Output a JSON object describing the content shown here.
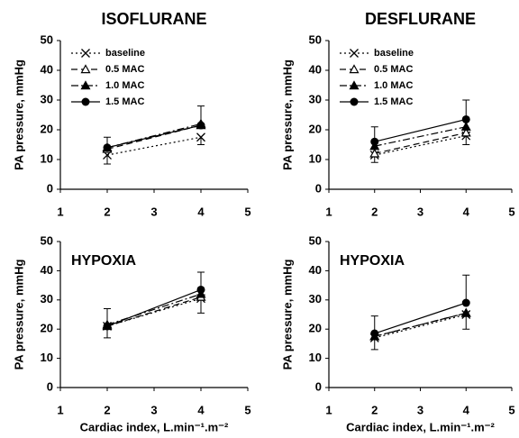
{
  "chart_data": [
    {
      "type": "line",
      "title": "ISOFLURANE",
      "ylabel": "PA pressure, mmHg",
      "x": [
        2,
        4
      ],
      "xlim": [
        1,
        5
      ],
      "xticks": [
        1,
        2,
        3,
        4,
        5
      ],
      "ylim": [
        0,
        50
      ],
      "yticks": [
        0,
        10,
        20,
        30,
        40,
        50
      ],
      "legend": "upper left",
      "series": [
        {
          "name": "baseline",
          "color": "#000000",
          "marker": "x",
          "linestyle": "dotted",
          "values": [
            11.5,
            17.5
          ],
          "errors": [
            3,
            2.5
          ],
          "error_direction": "down"
        },
        {
          "name": "0.5 MAC",
          "color": "#000000",
          "marker": "triangle-open",
          "linestyle": "dashed",
          "values": [
            13.5,
            21.5
          ]
        },
        {
          "name": "1.0 MAC",
          "color": "#000000",
          "marker": "triangle",
          "linestyle": "dashdot",
          "values": [
            14,
            22
          ]
        },
        {
          "name": "1.5 MAC",
          "color": "#000000",
          "marker": "circle",
          "linestyle": "solid",
          "values": [
            14,
            21.5
          ],
          "errors": [
            3.5,
            6.5
          ],
          "error_direction": "up"
        }
      ]
    },
    {
      "type": "line",
      "title": "DESFLURANE",
      "ylabel": "PA pressure, mmHg",
      "x": [
        2,
        4
      ],
      "xlim": [
        1,
        5
      ],
      "xticks": [
        1,
        2,
        3,
        4,
        5
      ],
      "ylim": [
        0,
        50
      ],
      "yticks": [
        0,
        10,
        20,
        30,
        40,
        50
      ],
      "legend": "upper left",
      "series": [
        {
          "name": "baseline",
          "color": "#000000",
          "marker": "x",
          "linestyle": "dotted",
          "values": [
            11.5,
            18
          ],
          "errors": [
            2.5,
            3
          ],
          "error_direction": "down"
        },
        {
          "name": "0.5 MAC",
          "color": "#000000",
          "marker": "triangle-open",
          "linestyle": "dashed",
          "values": [
            12,
            19
          ]
        },
        {
          "name": "1.0 MAC",
          "color": "#000000",
          "marker": "triangle",
          "linestyle": "dashdot",
          "values": [
            14.5,
            21
          ]
        },
        {
          "name": "1.5 MAC",
          "color": "#000000",
          "marker": "circle",
          "linestyle": "solid",
          "values": [
            16,
            23.5
          ],
          "errors": [
            5,
            6.5
          ],
          "error_direction": "up"
        }
      ]
    },
    {
      "type": "line",
      "annotation": "HYPOXIA",
      "ylabel": "PA pressure, mmHg",
      "xlabel": "Cardiac index, L.min⁻¹.m⁻²",
      "x": [
        2,
        4
      ],
      "xlim": [
        1,
        5
      ],
      "xticks": [
        1,
        2,
        3,
        4,
        5
      ],
      "ylim": [
        0,
        50
      ],
      "yticks": [
        0,
        10,
        20,
        30,
        40,
        50
      ],
      "series": [
        {
          "color": "#000000",
          "marker": "x",
          "linestyle": "dotted",
          "values": [
            21,
            30.5
          ],
          "errors": [
            4,
            5
          ],
          "error_direction": "down"
        },
        {
          "color": "#000000",
          "marker": "triangle-open",
          "linestyle": "dashed",
          "values": [
            21,
            31
          ]
        },
        {
          "color": "#000000",
          "marker": "triangle",
          "linestyle": "dashdot",
          "values": [
            21.5,
            32
          ]
        },
        {
          "color": "#000000",
          "marker": "circle",
          "linestyle": "solid",
          "values": [
            21,
            33.5
          ],
          "errors": [
            6,
            6
          ],
          "error_direction": "up"
        }
      ]
    },
    {
      "type": "line",
      "annotation": "HYPOXIA",
      "ylabel": "PA pressure, mmHg",
      "xlabel": "Cardiac index, L.min⁻¹.m⁻²",
      "x": [
        2,
        4
      ],
      "xlim": [
        1,
        5
      ],
      "xticks": [
        1,
        2,
        3,
        4,
        5
      ],
      "ylim": [
        0,
        50
      ],
      "yticks": [
        0,
        10,
        20,
        30,
        40,
        50
      ],
      "series": [
        {
          "color": "#000000",
          "marker": "x",
          "linestyle": "dotted",
          "values": [
            17,
            25
          ],
          "errors": [
            4,
            5
          ],
          "error_direction": "down"
        },
        {
          "color": "#000000",
          "marker": "triangle-open",
          "linestyle": "dashed",
          "values": [
            17.5,
            25.5
          ]
        },
        {
          "color": "#000000",
          "marker": "triangle",
          "linestyle": "dashdot",
          "values": [
            17.5,
            25.5
          ]
        },
        {
          "color": "#000000",
          "marker": "circle",
          "linestyle": "solid",
          "values": [
            18.5,
            29
          ],
          "errors": [
            6,
            9.5
          ],
          "error_direction": "up"
        }
      ]
    }
  ]
}
